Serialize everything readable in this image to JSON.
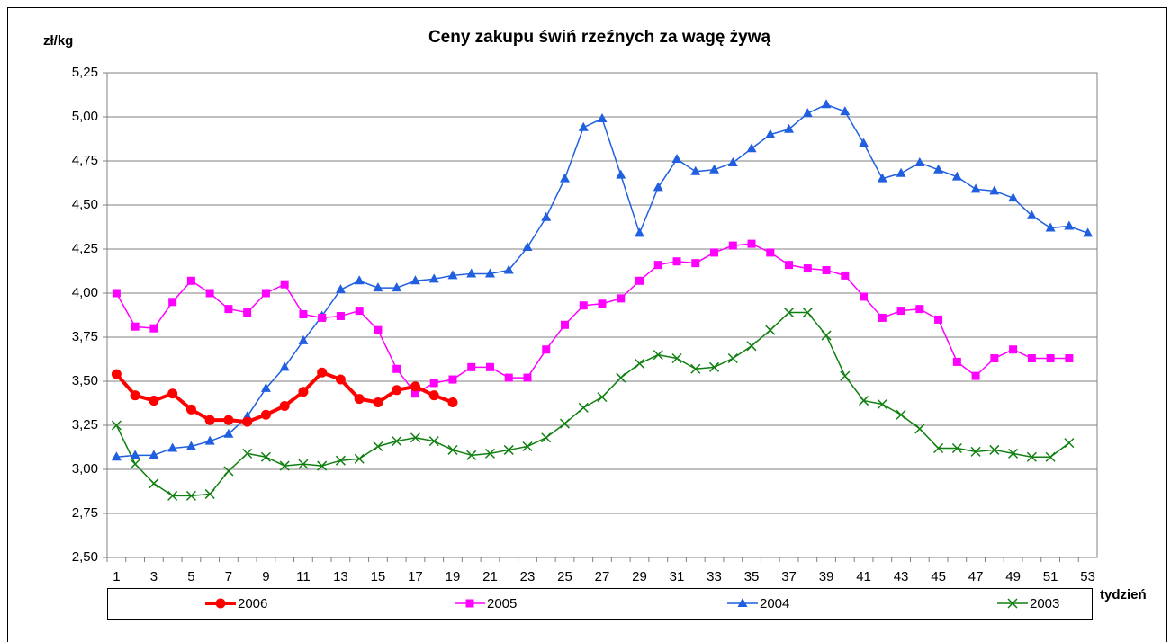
{
  "chart_data": {
    "type": "line",
    "title": "Ceny zakupu świń rzeźnych za wagę żywą",
    "y_label": "zł/kg",
    "x_label": "tydzień",
    "categories": [
      1,
      null,
      3,
      null,
      5,
      null,
      7,
      null,
      9,
      null,
      11,
      null,
      13,
      null,
      15,
      null,
      17,
      null,
      19,
      null,
      21,
      null,
      23,
      null,
      25,
      null,
      27,
      null,
      29,
      null,
      31,
      null,
      33,
      null,
      35,
      null,
      37,
      null,
      39,
      null,
      41,
      null,
      43,
      null,
      45,
      null,
      47,
      null,
      49,
      null,
      51,
      null,
      53
    ],
    "ylim": [
      2.5,
      5.25
    ],
    "yticks": [
      {
        "value": 2.5,
        "label": "2,50"
      },
      {
        "value": 2.75,
        "label": "2,75"
      },
      {
        "value": 3,
        "label": "3,00"
      },
      {
        "value": 3.25,
        "label": "3,25"
      },
      {
        "value": 3.5,
        "label": "3,50"
      },
      {
        "value": 3.75,
        "label": "3,75"
      },
      {
        "value": 4,
        "label": "4,00"
      },
      {
        "value": 4.25,
        "label": "4,25"
      },
      {
        "value": 4.5,
        "label": "4,50"
      },
      {
        "value": 4.75,
        "label": "4,75"
      },
      {
        "value": 5,
        "label": "5,00"
      },
      {
        "value": 5.25,
        "label": "5,25"
      }
    ],
    "grid": true,
    "legend": "bottom",
    "series": [
      {
        "name": "2006",
        "color": "#ff0000",
        "marker": "circle",
        "line_width": 4,
        "values": [
          3.54,
          3.42,
          3.39,
          3.43,
          3.34,
          3.28,
          3.28,
          3.27,
          3.31,
          3.36,
          3.44,
          3.55,
          3.51,
          3.4,
          3.38,
          3.45,
          3.47,
          3.42,
          3.38,
          null,
          null,
          null,
          null,
          null,
          null,
          null,
          null,
          null,
          null,
          null,
          null,
          null,
          null,
          null,
          null,
          null,
          null,
          null,
          null,
          null,
          null,
          null,
          null,
          null,
          null,
          null,
          null,
          null,
          null,
          null,
          null,
          null,
          null
        ]
      },
      {
        "name": "2005",
        "color": "#ff00ff",
        "marker": "square",
        "line_width": 1.5,
        "values": [
          4.0,
          3.81,
          3.8,
          3.95,
          4.07,
          4.0,
          3.91,
          3.89,
          4.0,
          4.05,
          3.88,
          3.86,
          3.87,
          3.9,
          3.79,
          3.57,
          3.43,
          3.49,
          3.51,
          3.58,
          3.58,
          3.52,
          3.52,
          3.68,
          3.82,
          3.93,
          3.94,
          3.97,
          4.07,
          4.16,
          4.18,
          4.17,
          4.23,
          4.27,
          4.28,
          4.23,
          4.16,
          4.14,
          4.13,
          4.1,
          3.98,
          3.86,
          3.9,
          3.91,
          3.85,
          3.61,
          3.53,
          3.63,
          3.68,
          3.63,
          3.63,
          3.63,
          null
        ]
      },
      {
        "name": "2004",
        "color": "#1f5fe0",
        "marker": "triangle",
        "line_width": 1.5,
        "values": [
          3.07,
          3.08,
          3.08,
          3.12,
          3.13,
          3.16,
          3.2,
          3.3,
          3.46,
          3.58,
          3.73,
          3.87,
          4.02,
          4.07,
          4.03,
          4.03,
          4.07,
          4.08,
          4.1,
          4.11,
          4.11,
          4.13,
          4.26,
          4.43,
          4.65,
          4.94,
          4.99,
          4.67,
          4.34,
          4.6,
          4.76,
          4.69,
          4.7,
          4.74,
          4.82,
          4.9,
          4.93,
          5.02,
          5.07,
          5.03,
          4.85,
          4.65,
          4.68,
          4.74,
          4.7,
          4.66,
          4.59,
          4.58,
          4.54,
          4.44,
          4.37,
          4.38,
          4.34
        ]
      },
      {
        "name": "2003",
        "color": "#108010",
        "marker": "cross",
        "line_width": 1.5,
        "values": [
          3.25,
          3.03,
          2.92,
          2.85,
          2.85,
          2.86,
          2.99,
          3.09,
          3.07,
          3.02,
          3.03,
          3.02,
          3.05,
          3.06,
          3.13,
          3.16,
          3.18,
          3.16,
          3.11,
          3.08,
          3.09,
          3.11,
          3.13,
          3.18,
          3.26,
          3.35,
          3.41,
          3.52,
          3.6,
          3.65,
          3.63,
          3.57,
          3.58,
          3.63,
          3.7,
          3.79,
          3.89,
          3.89,
          3.76,
          3.53,
          3.39,
          3.37,
          3.31,
          3.23,
          3.12,
          3.12,
          3.1,
          3.11,
          3.09,
          3.07,
          3.07,
          3.15,
          null
        ]
      }
    ]
  }
}
